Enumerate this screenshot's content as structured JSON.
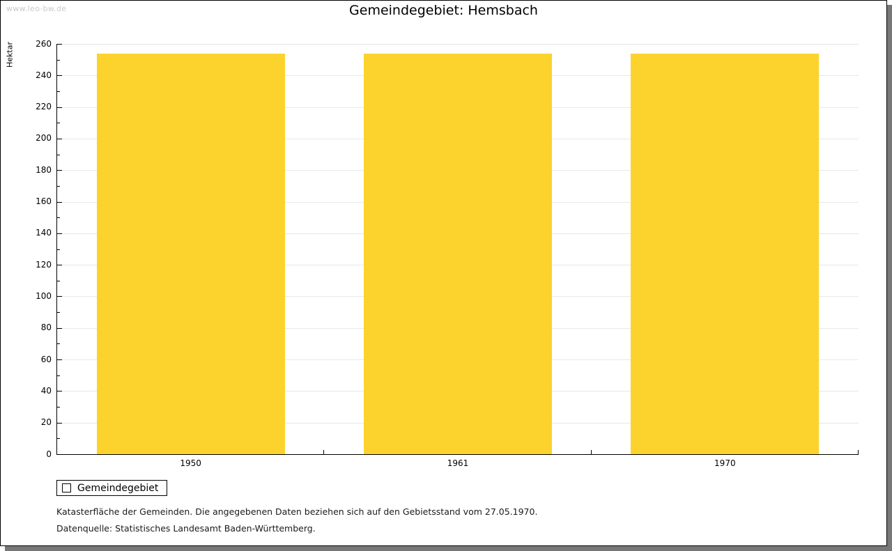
{
  "watermark": "www.leo-bw.de",
  "chart_data": {
    "type": "bar",
    "title": "Gemeindegebiet: Hemsbach",
    "xlabel": "",
    "ylabel": "Hektar",
    "categories": [
      "1950",
      "1961",
      "1970"
    ],
    "series": [
      {
        "name": "Gemeindegebiet",
        "values": [
          254,
          254,
          254
        ],
        "color": "#FCD32D"
      }
    ],
    "ylim": [
      0,
      260
    ],
    "ytick_step": 20,
    "yminor_step": 10,
    "grid": "horizontal-major-lines",
    "legend_position": "bottom-left"
  },
  "legend": {
    "items": [
      {
        "label": "Gemeindegebiet",
        "color": "#FCD32D"
      }
    ]
  },
  "footer": {
    "line1": "Katasterfläche der Gemeinden. Die angegebenen Daten beziehen sich auf den Gebietsstand vom 27.05.1970.",
    "line2": "Datenquelle: Statistisches Landesamt Baden-Württemberg."
  },
  "colors": {
    "bar": "#FCD32D",
    "gridline": "#E8E8E8",
    "axis": "#000000",
    "frame_shadow": "#787878",
    "watermark": "#C9C9C9"
  }
}
